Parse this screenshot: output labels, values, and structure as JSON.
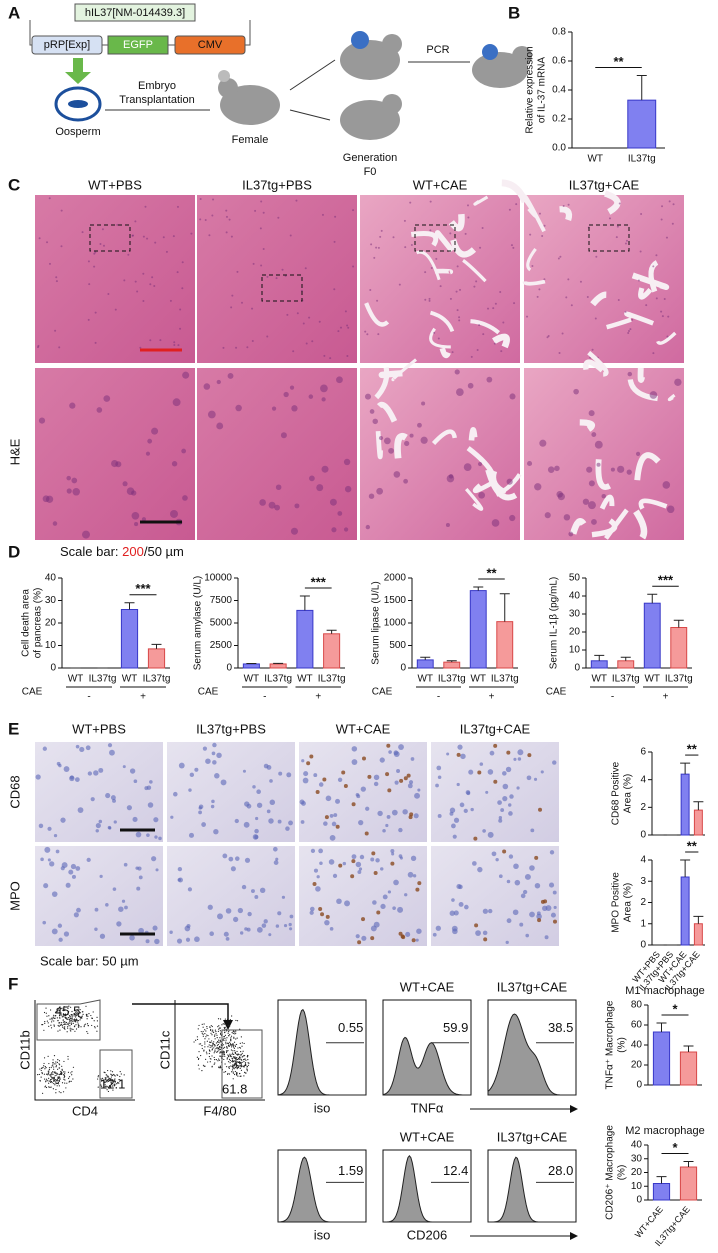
{
  "panel_labels": [
    "A",
    "B",
    "C",
    "D",
    "E",
    "F"
  ],
  "diagram": {
    "vector": "hIL37[NM-014439.3]",
    "elements": [
      "pRP[Exp]",
      "EGFP",
      "CMV"
    ],
    "oosperm": "Oosperm",
    "transfer": [
      "Embryo",
      "Transplantation"
    ],
    "female": "Female",
    "pcr": "PCR",
    "generation": [
      "Generation",
      "F0"
    ]
  },
  "he": {
    "columns": [
      "WT+PBS",
      "IL37tg+PBS",
      "WT+CAE",
      "IL37tg+CAE"
    ],
    "row_label": "H&E",
    "scale_bar": [
      "Scale bar: ",
      "200",
      "/50 µm"
    ]
  },
  "ihc": {
    "columns": [
      "WT+PBS",
      "IL37tg+PBS",
      "WT+CAE",
      "IL37tg+CAE"
    ],
    "rows": [
      "CD68",
      "MPO"
    ],
    "scale_bar": "Scale bar: 50 µm"
  },
  "flow": {
    "gates": [
      "CD11b",
      "CD4",
      "45.5",
      "12.1",
      "CD11c",
      "F4/80",
      "61.8"
    ],
    "row1": {
      "columns": [
        "WT+CAE",
        "IL37tg+CAE"
      ],
      "values": [
        "0.55",
        "59.9",
        "38.5"
      ],
      "xlabels": [
        "iso",
        "TNFα"
      ]
    },
    "row2": {
      "columns": [
        "WT+CAE",
        "IL37tg+CAE"
      ],
      "values": [
        "1.59",
        "12.4",
        "28.0"
      ],
      "xlabels": [
        "iso",
        "CD206"
      ]
    }
  },
  "chart_data": [
    {
      "type": "bar",
      "ylabel": [
        "Relative expression",
        "of IL-37 mRNA"
      ],
      "categories": [
        "WT",
        "IL37tg"
      ],
      "values": [
        0,
        0.33
      ],
      "errors": [
        0,
        0.17
      ],
      "colors": [
        "#8080f0",
        "#8080f0"
      ],
      "edge_colors": [
        "#3838c8",
        "#3838c8"
      ],
      "ylim": [
        0,
        0.8
      ],
      "yticks": [
        {
          "value": 0,
          "label": "0.0"
        },
        {
          "value": 0.2,
          "label": "0.2"
        },
        {
          "value": 0.4,
          "label": "0.4"
        },
        {
          "value": 0.6,
          "label": "0.6"
        },
        {
          "value": 0.8,
          "label": "0.8"
        }
      ],
      "significance": {
        "label": "**",
        "bars": [
          0,
          1
        ]
      }
    },
    {
      "type": "bar",
      "ylabel": [
        "Cell death area",
        "of pancreas (%)"
      ],
      "categories": [
        "WT",
        "IL37tg",
        "WT",
        "IL37tg"
      ],
      "values": [
        0,
        0,
        26,
        8.5
      ],
      "errors": [
        0,
        0,
        3,
        2
      ],
      "colors": [
        "#8080f0",
        "#f59a9a",
        "#8080f0",
        "#f59a9a"
      ],
      "edge_colors": [
        "#3838c8",
        "#d84848",
        "#3838c8",
        "#d84848"
      ],
      "ylim": [
        0,
        40
      ],
      "yticks": [
        0,
        10,
        20,
        30,
        40
      ],
      "significance": {
        "label": "***",
        "bars": [
          2,
          3
        ]
      },
      "group_label": "CAE",
      "groups": [
        "-",
        "+"
      ]
    },
    {
      "type": "bar",
      "ylabel": [
        "Serum amylase (U/L)"
      ],
      "categories": [
        "WT",
        "IL37tg",
        "WT",
        "IL37tg"
      ],
      "values": [
        450,
        450,
        6400,
        3800
      ],
      "errors": [
        50,
        60,
        1600,
        400
      ],
      "colors": [
        "#8080f0",
        "#f59a9a",
        "#8080f0",
        "#f59a9a"
      ],
      "edge_colors": [
        "#3838c8",
        "#d84848",
        "#3838c8",
        "#d84848"
      ],
      "ylim": [
        0,
        10000
      ],
      "yticks": [
        0,
        2500,
        5000,
        7500,
        10000
      ],
      "significance": {
        "label": "***",
        "bars": [
          2,
          3
        ]
      },
      "group_label": "CAE",
      "groups": [
        "-",
        "+"
      ]
    },
    {
      "type": "bar",
      "ylabel": [
        "Serum lipase (U/L)"
      ],
      "categories": [
        "WT",
        "IL37tg",
        "WT",
        "IL37tg"
      ],
      "values": [
        180,
        130,
        1720,
        1030
      ],
      "errors": [
        60,
        30,
        80,
        620
      ],
      "colors": [
        "#8080f0",
        "#f59a9a",
        "#8080f0",
        "#f59a9a"
      ],
      "edge_colors": [
        "#3838c8",
        "#d84848",
        "#3838c8",
        "#d84848"
      ],
      "ylim": [
        0,
        2000
      ],
      "yticks": [
        0,
        500,
        1000,
        1500,
        2000
      ],
      "significance": {
        "label": "**",
        "bars": [
          2,
          3
        ]
      },
      "group_label": "CAE",
      "groups": [
        "-",
        "+"
      ]
    },
    {
      "type": "bar",
      "ylabel": [
        "Serum IL-1β (pg/mL)"
      ],
      "categories": [
        "WT",
        "IL37tg",
        "WT",
        "IL37tg"
      ],
      "values": [
        4,
        4,
        36,
        22.5
      ],
      "errors": [
        3,
        2,
        5,
        4
      ],
      "colors": [
        "#8080f0",
        "#f59a9a",
        "#8080f0",
        "#f59a9a"
      ],
      "edge_colors": [
        "#3838c8",
        "#d84848",
        "#3838c8",
        "#d84848"
      ],
      "ylim": [
        0,
        50
      ],
      "yticks": [
        0,
        10,
        20,
        30,
        40,
        50
      ],
      "significance": {
        "label": "***",
        "bars": [
          2,
          3
        ]
      },
      "group_label": "CAE",
      "groups": [
        "-",
        "+"
      ]
    },
    {
      "type": "bar",
      "ylabel": [
        "CD68 Positive",
        "Area (%)"
      ],
      "values": [
        0,
        0,
        4.4,
        1.8
      ],
      "errors": [
        0,
        0,
        0.8,
        0.6
      ],
      "colors": [
        "#8080f0",
        "#f59a9a",
        "#8080f0",
        "#f59a9a"
      ],
      "edge_colors": [
        "#3838c8",
        "#d84848",
        "#3838c8",
        "#d84848"
      ],
      "ylim": [
        0,
        6
      ],
      "yticks": [
        0,
        2,
        4,
        6
      ],
      "significance": {
        "label": "**",
        "bars": [
          2,
          3
        ]
      }
    },
    {
      "type": "bar",
      "ylabel": [
        "MPO Positive",
        "Area (%)"
      ],
      "categories": [
        "WT+PBS",
        "IL37tg+PBS",
        "WT+CAE",
        "IL37tg+CAE"
      ],
      "values": [
        0,
        0,
        3.2,
        1.0
      ],
      "errors": [
        0,
        0,
        0.8,
        0.35
      ],
      "colors": [
        "#8080f0",
        "#f59a9a",
        "#8080f0",
        "#f59a9a"
      ],
      "edge_colors": [
        "#3838c8",
        "#d84848",
        "#3838c8",
        "#d84848"
      ],
      "ylim": [
        0,
        4
      ],
      "yticks": [
        0,
        1,
        2,
        3,
        4
      ],
      "significance": {
        "label": "**",
        "bars": [
          2,
          3
        ]
      }
    },
    {
      "type": "bar",
      "title": "M1 macrophage",
      "ylabel": [
        "TNFα⁺ Macrophage",
        "(%)"
      ],
      "values": [
        53,
        33
      ],
      "errors": [
        9,
        6
      ],
      "colors": [
        "#8080f0",
        "#f59a9a"
      ],
      "edge_colors": [
        "#3838c8",
        "#d84848"
      ],
      "ylim": [
        0,
        80
      ],
      "yticks": [
        0,
        20,
        40,
        60,
        80
      ],
      "significance": {
        "label": "*",
        "bars": [
          0,
          1
        ]
      }
    },
    {
      "type": "bar",
      "title": "M2 macrophage",
      "ylabel": [
        "CD206⁺ Macrophage",
        "(%)"
      ],
      "categories": [
        "WT+CAE",
        "IL37tg+CAE"
      ],
      "values": [
        12,
        24
      ],
      "errors": [
        5,
        4
      ],
      "colors": [
        "#8080f0",
        "#f59a9a"
      ],
      "edge_colors": [
        "#3838c8",
        "#d84848"
      ],
      "ylim": [
        0,
        40
      ],
      "yticks": [
        0,
        10,
        20,
        30,
        40
      ],
      "significance": {
        "label": "*",
        "bars": [
          0,
          1
        ]
      }
    }
  ]
}
